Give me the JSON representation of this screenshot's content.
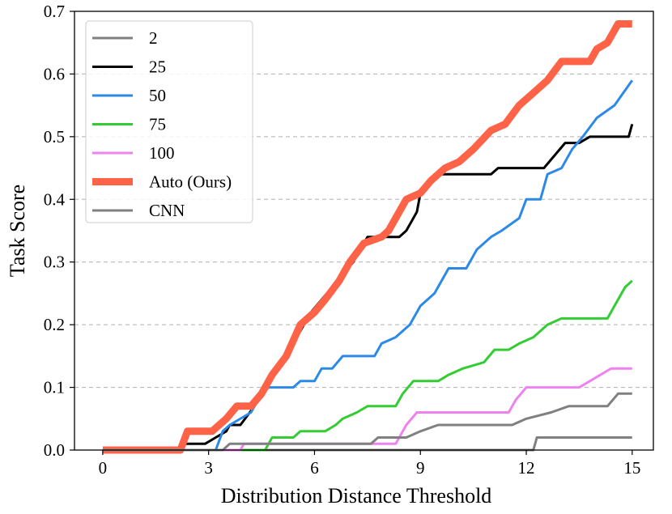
{
  "chart_data": {
    "type": "line",
    "xlabel": "Distribution Distance Threshold",
    "ylabel": "Task Score",
    "xlim": [
      -0.8,
      15.6
    ],
    "ylim": [
      0,
      0.7
    ],
    "xticks": [
      0,
      3,
      6,
      9,
      12,
      15
    ],
    "yticks": [
      0.0,
      0.1,
      0.2,
      0.3,
      0.4,
      0.5,
      0.6,
      0.7
    ],
    "xtick_labels": [
      "0",
      "3",
      "6",
      "9",
      "12",
      "15"
    ],
    "ytick_labels": [
      "0.0",
      "0.1",
      "0.2",
      "0.3",
      "0.4",
      "0.5",
      "0.6",
      "0.7"
    ],
    "grid": "horizontal dashed",
    "legend_position": "upper-left",
    "series": [
      {
        "name": "2",
        "color": "#808080",
        "width": 3,
        "points": [
          [
            0,
            0
          ],
          [
            12.2,
            0
          ],
          [
            12.3,
            0.02
          ],
          [
            15,
            0.02
          ]
        ]
      },
      {
        "name": "25",
        "color": "#000000",
        "width": 3,
        "points": [
          [
            0,
            0
          ],
          [
            2.1,
            0
          ],
          [
            2.3,
            0.01
          ],
          [
            2.9,
            0.01
          ],
          [
            3.2,
            0.02
          ],
          [
            3.5,
            0.03
          ],
          [
            3.6,
            0.04
          ],
          [
            3.9,
            0.04
          ],
          [
            4.3,
            0.07
          ],
          [
            4.6,
            0.1
          ],
          [
            4.9,
            0.13
          ],
          [
            5.3,
            0.16
          ],
          [
            5.6,
            0.19
          ],
          [
            5.9,
            0.22
          ],
          [
            6.5,
            0.26
          ],
          [
            6.8,
            0.28
          ],
          [
            7.1,
            0.3
          ],
          [
            7.3,
            0.32
          ],
          [
            7.5,
            0.34
          ],
          [
            8.4,
            0.34
          ],
          [
            8.6,
            0.35
          ],
          [
            8.9,
            0.38
          ],
          [
            9.0,
            0.41
          ],
          [
            9.3,
            0.43
          ],
          [
            9.4,
            0.44
          ],
          [
            11.0,
            0.44
          ],
          [
            11.2,
            0.45
          ],
          [
            12.5,
            0.45
          ],
          [
            12.8,
            0.47
          ],
          [
            13.1,
            0.49
          ],
          [
            13.5,
            0.49
          ],
          [
            13.8,
            0.5
          ],
          [
            14.9,
            0.5
          ],
          [
            15,
            0.52
          ]
        ]
      },
      {
        "name": "50",
        "color": "#2c8ae6",
        "width": 3,
        "points": [
          [
            0,
            0
          ],
          [
            3.2,
            0
          ],
          [
            3.4,
            0.03
          ],
          [
            3.6,
            0.04
          ],
          [
            4.2,
            0.06
          ],
          [
            4.5,
            0.09
          ],
          [
            4.7,
            0.1
          ],
          [
            5.4,
            0.1
          ],
          [
            5.6,
            0.11
          ],
          [
            6.0,
            0.11
          ],
          [
            6.2,
            0.13
          ],
          [
            6.5,
            0.13
          ],
          [
            6.8,
            0.15
          ],
          [
            7.7,
            0.15
          ],
          [
            7.9,
            0.17
          ],
          [
            8.3,
            0.18
          ],
          [
            8.7,
            0.2
          ],
          [
            9.0,
            0.23
          ],
          [
            9.4,
            0.25
          ],
          [
            9.8,
            0.29
          ],
          [
            10.3,
            0.29
          ],
          [
            10.6,
            0.32
          ],
          [
            11.0,
            0.34
          ],
          [
            11.3,
            0.35
          ],
          [
            11.8,
            0.37
          ],
          [
            12.0,
            0.4
          ],
          [
            12.4,
            0.4
          ],
          [
            12.6,
            0.44
          ],
          [
            13.0,
            0.45
          ],
          [
            13.3,
            0.48
          ],
          [
            13.6,
            0.5
          ],
          [
            14.0,
            0.53
          ],
          [
            14.5,
            0.55
          ],
          [
            15,
            0.59
          ]
        ]
      },
      {
        "name": "75",
        "color": "#33cc33",
        "width": 3,
        "points": [
          [
            0,
            0
          ],
          [
            4.6,
            0
          ],
          [
            4.8,
            0.02
          ],
          [
            5.4,
            0.02
          ],
          [
            5.6,
            0.03
          ],
          [
            6.3,
            0.03
          ],
          [
            6.6,
            0.04
          ],
          [
            6.8,
            0.05
          ],
          [
            7.2,
            0.06
          ],
          [
            7.5,
            0.07
          ],
          [
            8.3,
            0.07
          ],
          [
            8.5,
            0.09
          ],
          [
            8.8,
            0.11
          ],
          [
            9.5,
            0.11
          ],
          [
            9.8,
            0.12
          ],
          [
            10.2,
            0.13
          ],
          [
            10.8,
            0.14
          ],
          [
            11.1,
            0.16
          ],
          [
            11.5,
            0.16
          ],
          [
            11.8,
            0.17
          ],
          [
            12.2,
            0.18
          ],
          [
            12.6,
            0.2
          ],
          [
            13.0,
            0.21
          ],
          [
            14.3,
            0.21
          ],
          [
            14.5,
            0.23
          ],
          [
            14.8,
            0.26
          ],
          [
            15,
            0.27
          ]
        ]
      },
      {
        "name": "100",
        "color": "#ee82ee",
        "width": 3,
        "points": [
          [
            0,
            0
          ],
          [
            3.9,
            0
          ],
          [
            4.0,
            0.01
          ],
          [
            8.3,
            0.01
          ],
          [
            8.6,
            0.04
          ],
          [
            8.9,
            0.06
          ],
          [
            11.5,
            0.06
          ],
          [
            11.7,
            0.08
          ],
          [
            12.0,
            0.1
          ],
          [
            13.5,
            0.1
          ],
          [
            14.1,
            0.12
          ],
          [
            14.4,
            0.13
          ],
          [
            15,
            0.13
          ]
        ]
      },
      {
        "name": "Auto (Ours)",
        "color": "#ff6347",
        "width": 9,
        "points": [
          [
            0,
            0
          ],
          [
            2.2,
            0
          ],
          [
            2.4,
            0.03
          ],
          [
            3.1,
            0.03
          ],
          [
            3.5,
            0.05
          ],
          [
            3.8,
            0.07
          ],
          [
            4.2,
            0.07
          ],
          [
            4.5,
            0.09
          ],
          [
            4.8,
            0.12
          ],
          [
            5.2,
            0.15
          ],
          [
            5.6,
            0.2
          ],
          [
            6.0,
            0.22
          ],
          [
            6.3,
            0.24
          ],
          [
            6.7,
            0.27
          ],
          [
            7.0,
            0.3
          ],
          [
            7.4,
            0.33
          ],
          [
            7.9,
            0.34
          ],
          [
            8.1,
            0.35
          ],
          [
            8.3,
            0.37
          ],
          [
            8.6,
            0.4
          ],
          [
            9.0,
            0.41
          ],
          [
            9.3,
            0.43
          ],
          [
            9.7,
            0.45
          ],
          [
            10.1,
            0.46
          ],
          [
            10.5,
            0.48
          ],
          [
            11.0,
            0.51
          ],
          [
            11.4,
            0.52
          ],
          [
            11.8,
            0.55
          ],
          [
            12.2,
            0.57
          ],
          [
            12.6,
            0.59
          ],
          [
            13.0,
            0.62
          ],
          [
            13.8,
            0.62
          ],
          [
            14.0,
            0.64
          ],
          [
            14.3,
            0.65
          ],
          [
            14.6,
            0.68
          ],
          [
            15,
            0.68
          ]
        ]
      },
      {
        "name": "CNN",
        "color": "#808080",
        "width": 3,
        "points": [
          [
            0,
            0
          ],
          [
            3.4,
            0
          ],
          [
            3.6,
            0.01
          ],
          [
            7.6,
            0.01
          ],
          [
            7.8,
            0.02
          ],
          [
            8.6,
            0.02
          ],
          [
            9.0,
            0.03
          ],
          [
            9.5,
            0.04
          ],
          [
            11.6,
            0.04
          ],
          [
            12.0,
            0.05
          ],
          [
            12.7,
            0.06
          ],
          [
            13.2,
            0.07
          ],
          [
            14.3,
            0.07
          ],
          [
            14.6,
            0.09
          ],
          [
            15,
            0.09
          ]
        ]
      }
    ]
  }
}
